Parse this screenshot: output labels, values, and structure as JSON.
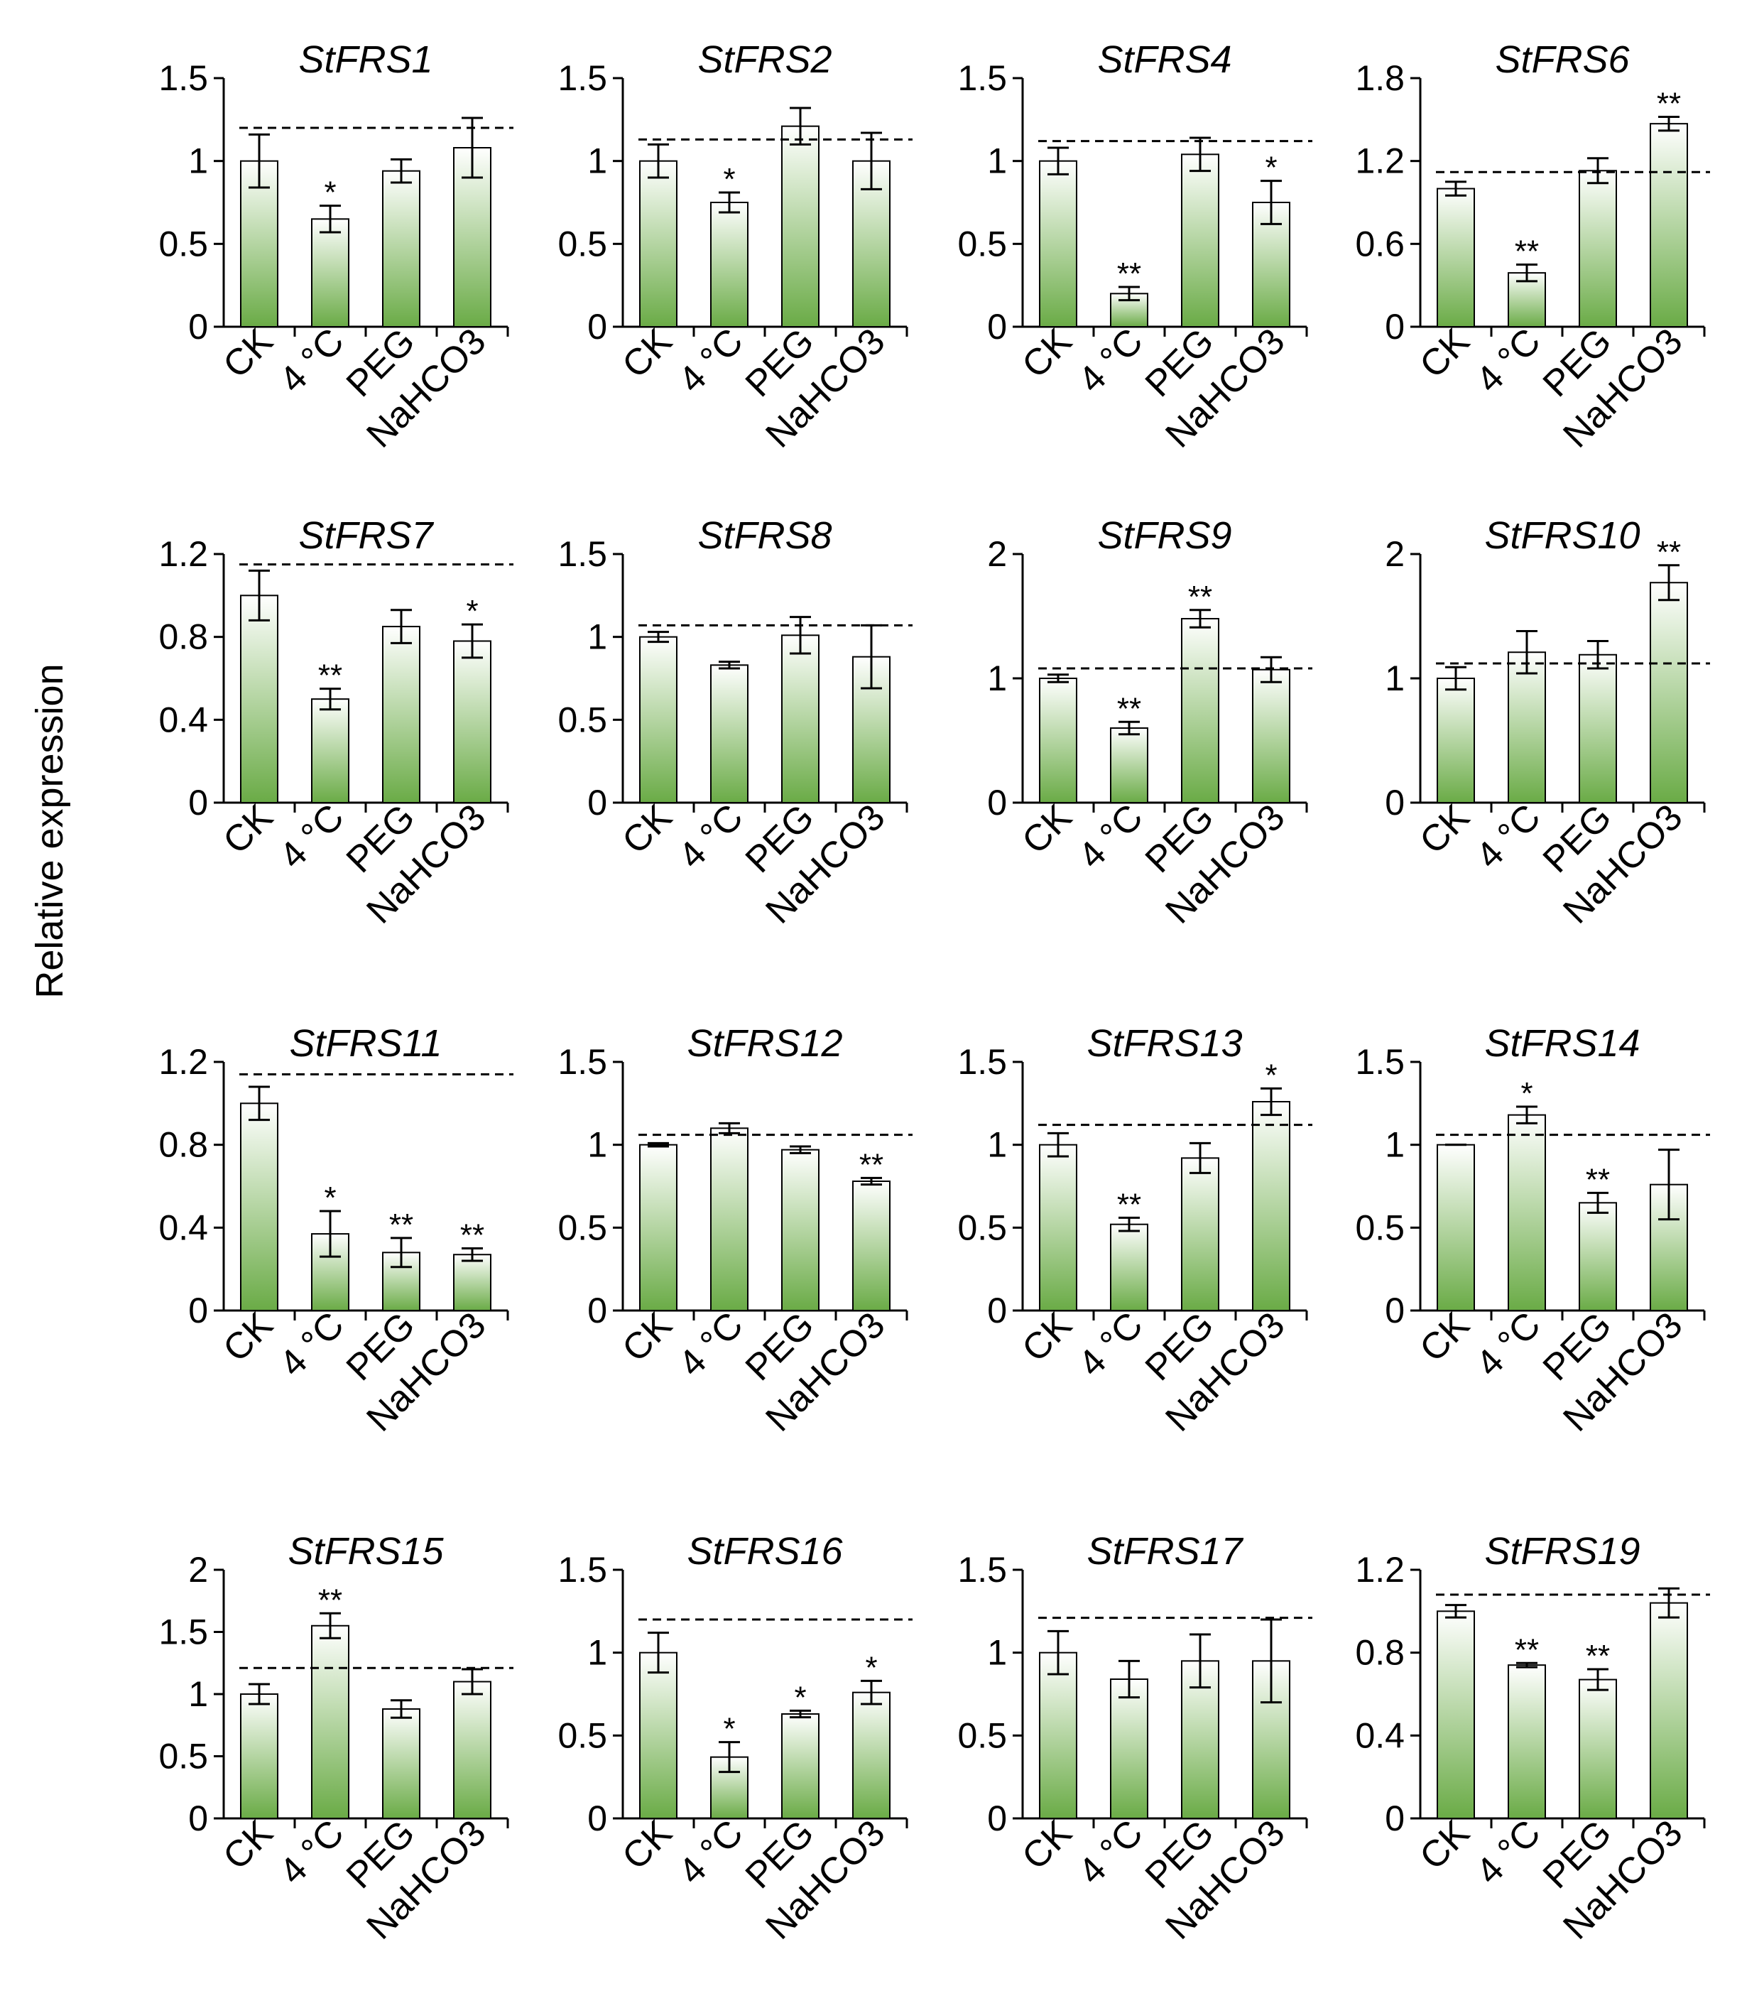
{
  "figure": {
    "ylabel": "Relative expression"
  },
  "colors": {
    "bar_top": "#ffffff",
    "bar_bottom": "#6aab46",
    "axis": "#000000"
  },
  "chart_data": [
    {
      "type": "bar",
      "title": "StFRS1",
      "categories": [
        "CK",
        "4 °C",
        "PEG",
        "NaHCO3"
      ],
      "values": [
        1.0,
        0.65,
        0.94,
        1.08
      ],
      "errors": [
        0.16,
        0.08,
        0.07,
        0.18
      ],
      "sig": [
        "",
        "*",
        "",
        ""
      ],
      "ylim": [
        0,
        1.5
      ],
      "yticks": [
        "0",
        "0.5",
        "1",
        "1.5"
      ],
      "dashed": 1.2
    },
    {
      "type": "bar",
      "title": "StFRS2",
      "categories": [
        "CK",
        "4 °C",
        "PEG",
        "NaHCO3"
      ],
      "values": [
        1.0,
        0.75,
        1.21,
        1.0
      ],
      "errors": [
        0.1,
        0.06,
        0.11,
        0.17
      ],
      "sig": [
        "",
        "*",
        "",
        ""
      ],
      "ylim": [
        0,
        1.5
      ],
      "yticks": [
        "0",
        "0.5",
        "1",
        "1.5"
      ],
      "dashed": 1.13
    },
    {
      "type": "bar",
      "title": "StFRS4",
      "categories": [
        "CK",
        "4 °C",
        "PEG",
        "NaHCO3"
      ],
      "values": [
        1.0,
        0.2,
        1.04,
        0.75
      ],
      "errors": [
        0.08,
        0.04,
        0.1,
        0.13
      ],
      "sig": [
        "",
        "**",
        "",
        "*"
      ],
      "ylim": [
        0,
        1.5
      ],
      "yticks": [
        "0",
        "0.5",
        "1",
        "1.5"
      ],
      "dashed": 1.12
    },
    {
      "type": "bar",
      "title": "StFRS6",
      "categories": [
        "CK",
        "4 °C",
        "PEG",
        "NaHCO3"
      ],
      "values": [
        1.0,
        0.39,
        1.13,
        1.47
      ],
      "errors": [
        0.05,
        0.06,
        0.09,
        0.05
      ],
      "sig": [
        "",
        "**",
        "",
        "**"
      ],
      "ylim": [
        0,
        1.8
      ],
      "yticks": [
        "0",
        "0.6",
        "1.2",
        "1.8"
      ],
      "dashed": 1.12
    },
    {
      "type": "bar",
      "title": "StFRS7",
      "categories": [
        "CK",
        "4 °C",
        "PEG",
        "NaHCO3"
      ],
      "values": [
        1.0,
        0.5,
        0.85,
        0.78
      ],
      "errors": [
        0.12,
        0.05,
        0.08,
        0.08
      ],
      "sig": [
        "",
        "**",
        "",
        "*"
      ],
      "ylim": [
        0,
        1.2
      ],
      "yticks": [
        "0",
        "0.4",
        "0.8",
        "1.2"
      ],
      "dashed": 1.15
    },
    {
      "type": "bar",
      "title": "StFRS8",
      "categories": [
        "CK",
        "4 °C",
        "PEG",
        "NaHCO3"
      ],
      "values": [
        1.0,
        0.83,
        1.01,
        0.88
      ],
      "errors": [
        0.03,
        0.02,
        0.11,
        0.19
      ],
      "sig": [
        "",
        "",
        "",
        ""
      ],
      "ylim": [
        0,
        1.5
      ],
      "yticks": [
        "0",
        "0.5",
        "1",
        "1.5"
      ],
      "dashed": 1.07
    },
    {
      "type": "bar",
      "title": "StFRS9",
      "categories": [
        "CK",
        "4 °C",
        "PEG",
        "NaHCO3"
      ],
      "values": [
        1.0,
        0.6,
        1.48,
        1.07
      ],
      "errors": [
        0.03,
        0.05,
        0.07,
        0.1
      ],
      "sig": [
        "",
        "**",
        "**",
        ""
      ],
      "ylim": [
        0,
        2
      ],
      "yticks": [
        "0",
        "1",
        "2"
      ],
      "dashed": 1.08
    },
    {
      "type": "bar",
      "title": "StFRS10",
      "categories": [
        "CK",
        "4 °C",
        "PEG",
        "NaHCO3"
      ],
      "values": [
        1.0,
        1.21,
        1.19,
        1.77
      ],
      "errors": [
        0.09,
        0.17,
        0.11,
        0.14
      ],
      "sig": [
        "",
        "",
        "",
        "**"
      ],
      "ylim": [
        0,
        2
      ],
      "yticks": [
        "0",
        "1",
        "2"
      ],
      "dashed": 1.12
    },
    {
      "type": "bar",
      "title": "StFRS11",
      "categories": [
        "CK",
        "4 °C",
        "PEG",
        "NaHCO3"
      ],
      "values": [
        1.0,
        0.37,
        0.28,
        0.27
      ],
      "errors": [
        0.08,
        0.11,
        0.07,
        0.03
      ],
      "sig": [
        "",
        "*",
        "**",
        "**"
      ],
      "ylim": [
        0,
        1.2
      ],
      "yticks": [
        "0",
        "0.4",
        "0.8",
        "1.2"
      ],
      "dashed": 1.14
    },
    {
      "type": "bar",
      "title": "StFRS12",
      "categories": [
        "CK",
        "4 °C",
        "PEG",
        "NaHCO3"
      ],
      "values": [
        1.0,
        1.1,
        0.97,
        0.78
      ],
      "errors": [
        0.01,
        0.03,
        0.02,
        0.02
      ],
      "sig": [
        "",
        "",
        "",
        "**"
      ],
      "ylim": [
        0,
        1.5
      ],
      "yticks": [
        "0",
        "0.5",
        "1",
        "1.5"
      ],
      "dashed": 1.06
    },
    {
      "type": "bar",
      "title": "StFRS13",
      "categories": [
        "CK",
        "4 °C",
        "PEG",
        "NaHCO3"
      ],
      "values": [
        1.0,
        0.52,
        0.92,
        1.26
      ],
      "errors": [
        0.07,
        0.04,
        0.09,
        0.08
      ],
      "sig": [
        "",
        "**",
        "",
        "*"
      ],
      "ylim": [
        0,
        1.5
      ],
      "yticks": [
        "0",
        "0.5",
        "1",
        "1.5"
      ],
      "dashed": 1.12
    },
    {
      "type": "bar",
      "title": "StFRS14",
      "categories": [
        "CK",
        "4 °C",
        "PEG",
        "NaHCO3"
      ],
      "values": [
        1.0,
        1.18,
        0.65,
        0.76
      ],
      "errors": [
        0.0,
        0.05,
        0.06,
        0.21
      ],
      "sig": [
        "",
        "*",
        "**",
        ""
      ],
      "ylim": [
        0,
        1.5
      ],
      "yticks": [
        "0",
        "0.5",
        "1",
        "1.5"
      ],
      "dashed": 1.06
    },
    {
      "type": "bar",
      "title": "StFRS15",
      "categories": [
        "CK",
        "4 °C",
        "PEG",
        "NaHCO3"
      ],
      "values": [
        1.0,
        1.55,
        0.88,
        1.1
      ],
      "errors": [
        0.08,
        0.1,
        0.07,
        0.1
      ],
      "sig": [
        "",
        "**",
        "",
        ""
      ],
      "ylim": [
        0,
        2
      ],
      "yticks": [
        "0",
        "0.5",
        "1",
        "1.5",
        "2"
      ],
      "dashed": 1.21
    },
    {
      "type": "bar",
      "title": "StFRS16",
      "categories": [
        "CK",
        "4 °C",
        "PEG",
        "NaHCO3"
      ],
      "values": [
        1.0,
        0.37,
        0.63,
        0.76
      ],
      "errors": [
        0.12,
        0.09,
        0.02,
        0.07
      ],
      "sig": [
        "",
        "*",
        "*",
        "*"
      ],
      "ylim": [
        0,
        1.5
      ],
      "yticks": [
        "0",
        "0.5",
        "1",
        "1.5"
      ],
      "dashed": 1.2
    },
    {
      "type": "bar",
      "title": "StFRS17",
      "categories": [
        "CK",
        "4 °C",
        "PEG",
        "NaHCO3"
      ],
      "values": [
        1.0,
        0.84,
        0.95,
        0.95
      ],
      "errors": [
        0.13,
        0.11,
        0.16,
        0.25
      ],
      "sig": [
        "",
        "",
        "",
        ""
      ],
      "ylim": [
        0,
        1.5
      ],
      "yticks": [
        "0",
        "0.5",
        "1",
        "1.5"
      ],
      "dashed": 1.21
    },
    {
      "type": "bar",
      "title": "StFRS19",
      "categories": [
        "CK",
        "4 °C",
        "PEG",
        "NaHCO3"
      ],
      "values": [
        1.0,
        0.74,
        0.67,
        1.04
      ],
      "errors": [
        0.03,
        0.01,
        0.05,
        0.07
      ],
      "sig": [
        "",
        "**",
        "**",
        ""
      ],
      "ylim": [
        0,
        1.2
      ],
      "yticks": [
        "0",
        "0.4",
        "0.8",
        "1.2"
      ],
      "dashed": 1.08
    }
  ]
}
